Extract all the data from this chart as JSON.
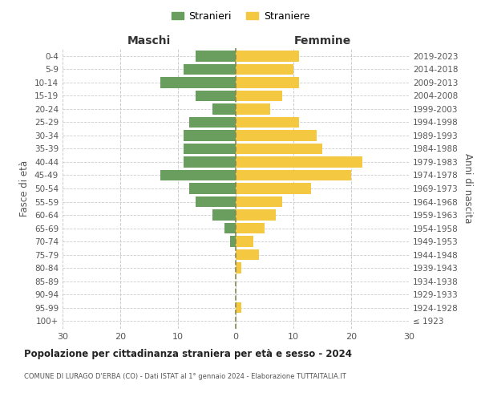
{
  "age_groups": [
    "100+",
    "95-99",
    "90-94",
    "85-89",
    "80-84",
    "75-79",
    "70-74",
    "65-69",
    "60-64",
    "55-59",
    "50-54",
    "45-49",
    "40-44",
    "35-39",
    "30-34",
    "25-29",
    "20-24",
    "15-19",
    "10-14",
    "5-9",
    "0-4"
  ],
  "birth_years": [
    "≤ 1923",
    "1924-1928",
    "1929-1933",
    "1934-1938",
    "1939-1943",
    "1944-1948",
    "1949-1953",
    "1954-1958",
    "1959-1963",
    "1964-1968",
    "1969-1973",
    "1974-1978",
    "1979-1983",
    "1984-1988",
    "1989-1993",
    "1994-1998",
    "1999-2003",
    "2004-2008",
    "2009-2013",
    "2014-2018",
    "2019-2023"
  ],
  "males": [
    0,
    0,
    0,
    0,
    0,
    0,
    1,
    2,
    4,
    7,
    8,
    13,
    9,
    9,
    9,
    8,
    4,
    7,
    13,
    9,
    7
  ],
  "females": [
    0,
    1,
    0,
    0,
    1,
    4,
    3,
    5,
    7,
    8,
    13,
    20,
    22,
    15,
    14,
    11,
    6,
    8,
    11,
    10,
    11
  ],
  "male_color": "#6a9e5e",
  "female_color": "#f5c842",
  "grid_color": "#cccccc",
  "bg_color": "#ffffff",
  "center_line_color": "#888855",
  "title": "Popolazione per cittadinanza straniera per età e sesso - 2024",
  "subtitle": "COMUNE DI LURAGO D'ERBA (CO) - Dati ISTAT al 1° gennaio 2024 - Elaborazione TUTTAITALIA.IT",
  "xlabel_left": "Maschi",
  "xlabel_right": "Femmine",
  "ylabel_left": "Fasce di età",
  "ylabel_right": "Anni di nascita",
  "legend_male": "Stranieri",
  "legend_female": "Straniere",
  "xlim": 30,
  "bar_height": 0.8
}
